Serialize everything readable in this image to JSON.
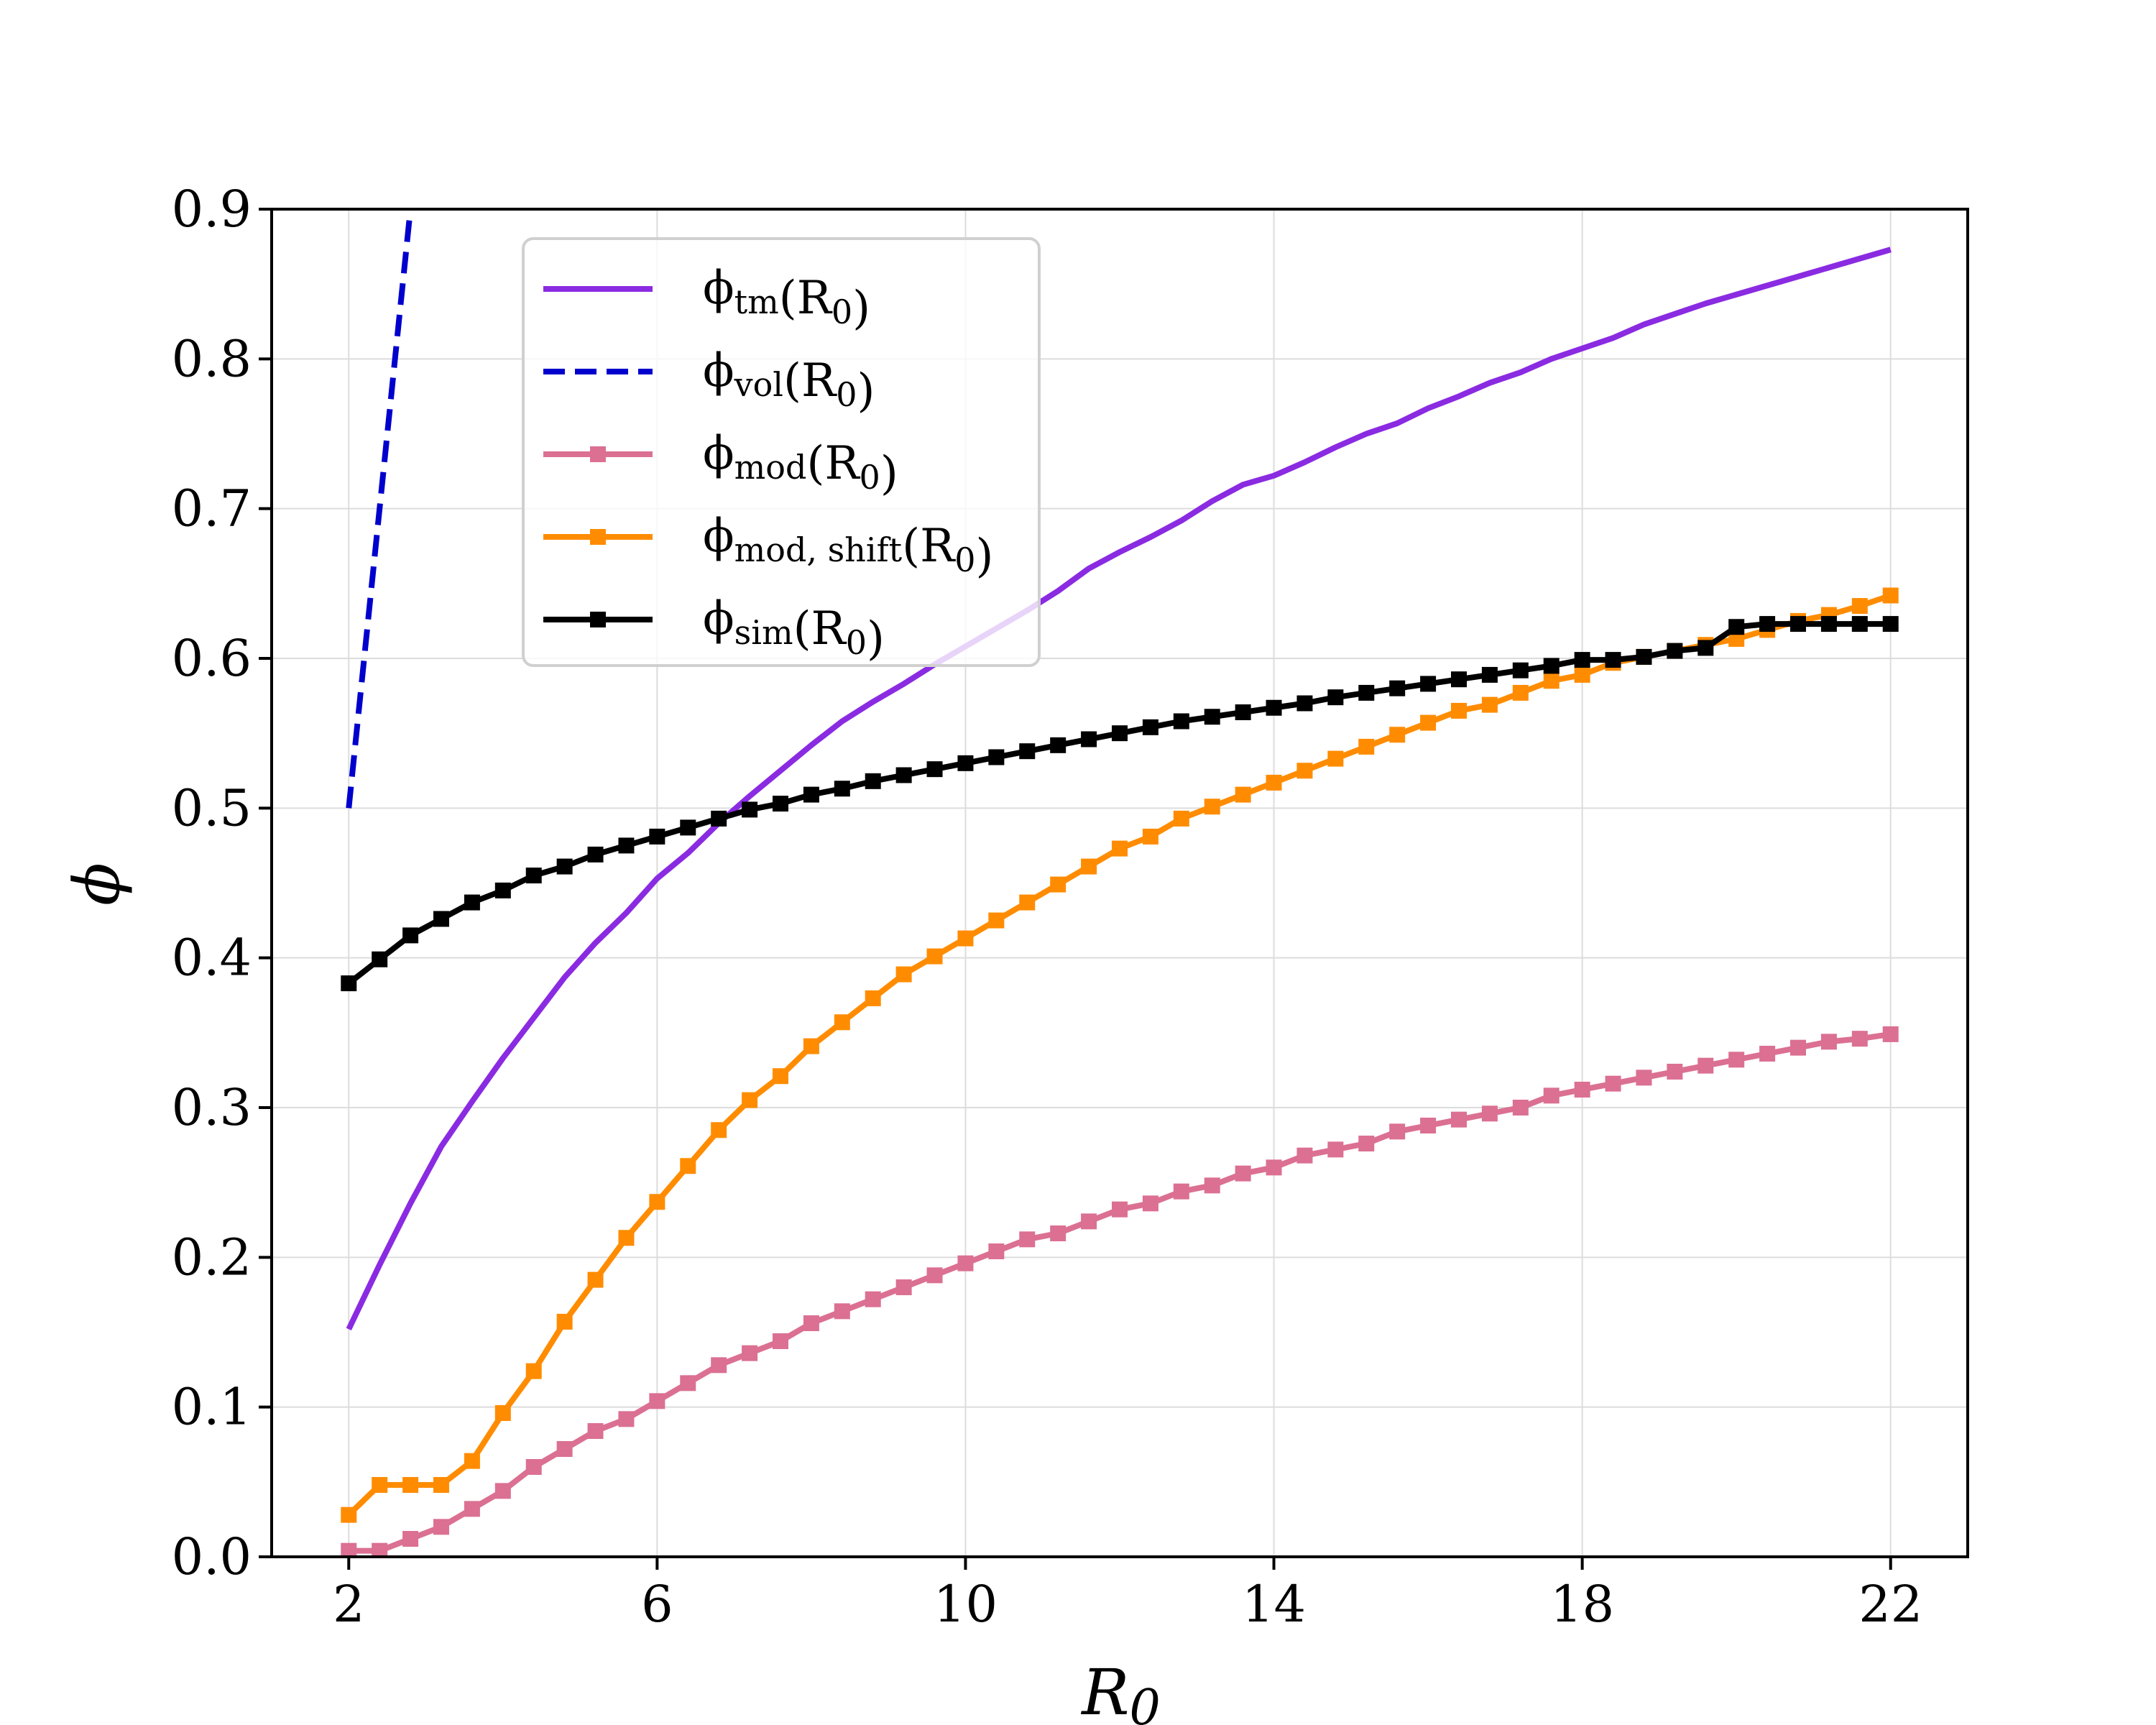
{
  "chart_data": {
    "type": "line",
    "title": "",
    "xlabel": "R_0",
    "ylabel": "ϕ",
    "xlim": [
      1,
      23
    ],
    "ylim": [
      0,
      0.9
    ],
    "xticks": [
      2,
      6,
      10,
      14,
      18,
      22
    ],
    "yticks": [
      0.0,
      0.1,
      0.2,
      0.3,
      0.4,
      0.5,
      0.6,
      0.7,
      0.8,
      0.9
    ],
    "xtick_labels": [
      "2",
      "6",
      "10",
      "14",
      "18",
      "22"
    ],
    "ytick_labels": [
      "0.0",
      "0.1",
      "0.2",
      "0.3",
      "0.4",
      "0.5",
      "0.6",
      "0.7",
      "0.8",
      "0.9"
    ],
    "grid": true,
    "legend_position": "top-center",
    "x": [
      2,
      2.4,
      2.8,
      3.2,
      3.6,
      4,
      4.4,
      4.8,
      5.2,
      5.6,
      6,
      6.4,
      6.8,
      7.2,
      7.6,
      8,
      8.4,
      8.8,
      9.2,
      9.6,
      10,
      10.4,
      10.8,
      11.2,
      11.6,
      12,
      12.4,
      12.8,
      13.2,
      13.6,
      14,
      14.4,
      14.8,
      15.2,
      15.6,
      16,
      16.4,
      16.8,
      17.2,
      17.6,
      18,
      18.4,
      18.8,
      19.2,
      19.6,
      20,
      20.4,
      20.8,
      21.2,
      21.6,
      22
    ],
    "series": [
      {
        "name": "ϕ_{tm}(R_0)",
        "color": "#8a2be2",
        "style": "solid",
        "marker": "none",
        "values": [
          0.152,
          0.195,
          0.236,
          0.274,
          0.304,
          0.333,
          0.36,
          0.387,
          0.41,
          0.43,
          0.453,
          0.47,
          0.49,
          0.508,
          0.525,
          0.542,
          0.558,
          0.571,
          0.583,
          0.596,
          0.608,
          0.62,
          0.632,
          0.645,
          0.66,
          0.671,
          0.681,
          0.692,
          0.705,
          0.716,
          0.722,
          0.731,
          0.741,
          0.75,
          0.757,
          0.767,
          0.775,
          0.784,
          0.791,
          0.8,
          0.807,
          0.814,
          0.823,
          0.83,
          0.837,
          0.843,
          0.849,
          0.855,
          0.861,
          0.867,
          0.873
        ]
      },
      {
        "name": "ϕ_{vol}(R_0)",
        "color": "#0000cd",
        "style": "dashed",
        "marker": "none",
        "x": [
          2,
          2.4,
          2.8
        ],
        "values": [
          0.5,
          0.7,
          0.9
        ]
      },
      {
        "name": "ϕ_{mod}(R_0)",
        "color": "#db7093",
        "style": "solid",
        "marker": "square",
        "values": [
          0.004,
          0.004,
          0.012,
          0.02,
          0.032,
          0.044,
          0.06,
          0.072,
          0.084,
          0.092,
          0.104,
          0.116,
          0.128,
          0.136,
          0.144,
          0.156,
          0.164,
          0.172,
          0.18,
          0.188,
          0.196,
          0.204,
          0.212,
          0.216,
          0.224,
          0.232,
          0.236,
          0.244,
          0.248,
          0.256,
          0.26,
          0.268,
          0.272,
          0.276,
          0.284,
          0.288,
          0.292,
          0.296,
          0.3,
          0.308,
          0.312,
          0.316,
          0.32,
          0.324,
          0.328,
          0.332,
          0.336,
          0.34,
          0.344,
          0.346,
          0.349
        ]
      },
      {
        "name": "ϕ_{mod, shift}(R_0)",
        "color": "#ff8c00",
        "style": "solid",
        "marker": "square",
        "values": [
          0.028,
          0.048,
          0.048,
          0.048,
          0.064,
          0.096,
          0.124,
          0.157,
          0.185,
          0.213,
          0.237,
          0.261,
          0.285,
          0.305,
          0.321,
          0.341,
          0.357,
          0.373,
          0.389,
          0.401,
          0.413,
          0.425,
          0.437,
          0.449,
          0.461,
          0.473,
          0.481,
          0.493,
          0.501,
          0.509,
          0.517,
          0.525,
          0.533,
          0.541,
          0.549,
          0.557,
          0.565,
          0.569,
          0.577,
          0.585,
          0.589,
          0.597,
          0.601,
          0.605,
          0.609,
          0.613,
          0.619,
          0.625,
          0.629,
          0.635,
          0.642
        ]
      },
      {
        "name": "ϕ_{sim}(R_0)",
        "color": "#000000",
        "style": "solid",
        "marker": "square",
        "values": [
          0.383,
          0.399,
          0.415,
          0.426,
          0.437,
          0.445,
          0.455,
          0.461,
          0.469,
          0.475,
          0.481,
          0.487,
          0.493,
          0.499,
          0.503,
          0.509,
          0.513,
          0.518,
          0.522,
          0.526,
          0.53,
          0.534,
          0.538,
          0.542,
          0.546,
          0.55,
          0.554,
          0.558,
          0.561,
          0.564,
          0.567,
          0.57,
          0.574,
          0.577,
          0.58,
          0.583,
          0.586,
          0.589,
          0.592,
          0.595,
          0.599,
          0.599,
          0.601,
          0.605,
          0.607,
          0.621,
          0.623,
          0.623,
          0.623,
          0.623,
          0.623
        ]
      }
    ]
  }
}
